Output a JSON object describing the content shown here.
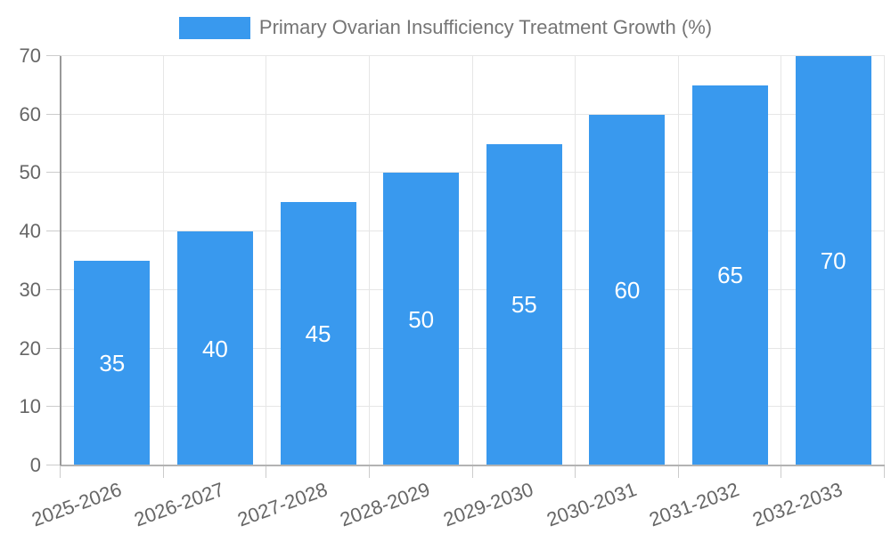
{
  "legend": {
    "label": "Primary Ovarian Insufficiency Treatment Growth (%)"
  },
  "chart_data": {
    "type": "bar",
    "title": "Primary Ovarian Insufficiency Treatment Growth (%)",
    "categories": [
      "2025-2026",
      "2026-2027",
      "2027-2028",
      "2028-2029",
      "2029-2030",
      "2030-2031",
      "2031-2032",
      "2032-2033"
    ],
    "values": [
      35,
      40,
      45,
      50,
      55,
      60,
      65,
      70
    ],
    "xlabel": "",
    "ylabel": "",
    "ylim": [
      0,
      70
    ],
    "yticks": [
      0,
      10,
      20,
      30,
      40,
      50,
      60,
      70
    ],
    "grid": true,
    "legend_position": "top",
    "bar_color": "#3999ee",
    "value_label_color": "#ffffff",
    "axis_text_color": "#666666",
    "legend_text_color": "#757575",
    "grid_color": "#e6e6e6",
    "tick_color": "#cccccc",
    "axis_line_color": "#999999",
    "baseline_color": "#b3b3b3"
  }
}
